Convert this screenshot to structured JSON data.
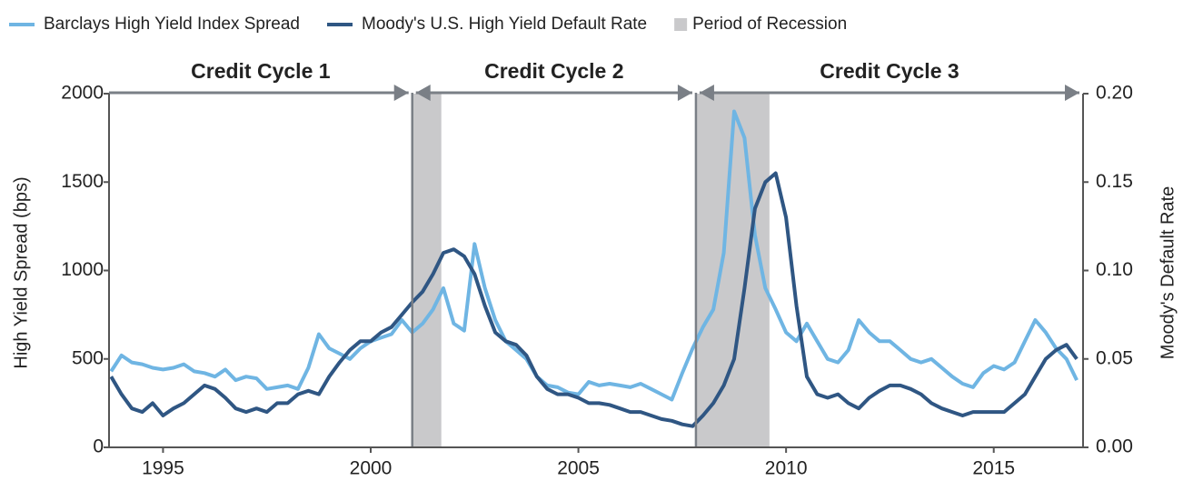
{
  "chart_data": {
    "type": "line",
    "y_label": "High Yield Spread (bps)",
    "y2_label": "Moody's Default Rate",
    "xlim": [
      1993.7,
      2017.15
    ],
    "xticks": [
      1995,
      2000,
      2005,
      2010,
      2015
    ],
    "ylim": [
      0,
      2000
    ],
    "yticks": [
      0,
      500,
      1000,
      1500,
      2000
    ],
    "y2lim": [
      0,
      0.2
    ],
    "y2ticks": [
      {
        "value": 0,
        "label": "0.00"
      },
      {
        "value": 0.05,
        "label": "0.05"
      },
      {
        "value": 0.1,
        "label": "0.10"
      },
      {
        "value": 0.15,
        "label": "0.15"
      },
      {
        "value": 0.2,
        "label": "0.20"
      }
    ],
    "recessions": {
      "name": "Period of Recession",
      "color": "#c9c9cb",
      "ranges": [
        [
          2001.0,
          2001.7
        ],
        [
          2007.83,
          2009.6
        ]
      ]
    },
    "cycles": [
      {
        "label": "Credit Cycle 1",
        "start": 1993.7,
        "end": 2001.0
      },
      {
        "label": "Credit Cycle 2",
        "start": 2001.0,
        "end": 2007.83
      },
      {
        "label": "Credit Cycle 3",
        "start": 2007.83,
        "end": 2017.15
      }
    ],
    "x": [
      1993.75,
      1994.0,
      1994.25,
      1994.5,
      1994.75,
      1995.0,
      1995.25,
      1995.5,
      1995.75,
      1996.0,
      1996.25,
      1996.5,
      1996.75,
      1997.0,
      1997.25,
      1997.5,
      1997.75,
      1998.0,
      1998.25,
      1998.5,
      1998.75,
      1999.0,
      1999.25,
      1999.5,
      1999.75,
      2000.0,
      2000.25,
      2000.5,
      2000.75,
      2001.0,
      2001.25,
      2001.5,
      2001.75,
      2002.0,
      2002.25,
      2002.5,
      2002.75,
      2003.0,
      2003.25,
      2003.5,
      2003.75,
      2004.0,
      2004.25,
      2004.5,
      2004.75,
      2005.0,
      2005.25,
      2005.5,
      2005.75,
      2006.0,
      2006.25,
      2006.5,
      2006.75,
      2007.0,
      2007.25,
      2007.5,
      2007.75,
      2008.0,
      2008.25,
      2008.5,
      2008.75,
      2009.0,
      2009.25,
      2009.5,
      2009.75,
      2010.0,
      2010.25,
      2010.5,
      2010.75,
      2011.0,
      2011.25,
      2011.5,
      2011.75,
      2012.0,
      2012.25,
      2012.5,
      2012.75,
      2013.0,
      2013.25,
      2013.5,
      2013.75,
      2014.0,
      2014.25,
      2014.5,
      2014.75,
      2015.0,
      2015.25,
      2015.5,
      2015.75,
      2016.0,
      2016.25,
      2016.5,
      2016.75,
      2017.0
    ],
    "series": [
      {
        "name": "Barclays High Yield Index Spread",
        "color": "#6fb5e3",
        "values": [
          430,
          520,
          480,
          470,
          450,
          440,
          450,
          470,
          430,
          420,
          400,
          440,
          380,
          400,
          390,
          330,
          340,
          350,
          330,
          450,
          640,
          560,
          530,
          500,
          560,
          600,
          620,
          640,
          720,
          650,
          700,
          780,
          900,
          700,
          660,
          1150,
          900,
          720,
          600,
          550,
          500,
          400,
          350,
          340,
          310,
          300,
          370,
          350,
          360,
          350,
          340,
          360,
          330,
          300,
          270,
          420,
          560,
          680,
          780,
          1100,
          1900,
          1750,
          1200,
          900,
          780,
          650,
          600,
          700,
          600,
          500,
          480,
          550,
          720,
          650,
          600,
          600,
          550,
          500,
          480,
          500,
          450,
          400,
          360,
          340,
          420,
          460,
          440,
          480,
          600,
          720,
          650,
          560,
          500,
          380
        ]
      },
      {
        "name": "Moody's U.S. High Yield Default Rate",
        "color": "#2f5683",
        "axis": "y2",
        "values": [
          0.04,
          0.03,
          0.022,
          0.02,
          0.025,
          0.018,
          0.022,
          0.025,
          0.03,
          0.035,
          0.033,
          0.028,
          0.022,
          0.02,
          0.022,
          0.02,
          0.025,
          0.025,
          0.03,
          0.032,
          0.03,
          0.04,
          0.048,
          0.055,
          0.06,
          0.06,
          0.065,
          0.068,
          0.075,
          0.082,
          0.088,
          0.098,
          0.11,
          0.112,
          0.108,
          0.098,
          0.08,
          0.065,
          0.06,
          0.058,
          0.052,
          0.04,
          0.033,
          0.03,
          0.03,
          0.028,
          0.025,
          0.025,
          0.024,
          0.022,
          0.02,
          0.02,
          0.018,
          0.016,
          0.015,
          0.013,
          0.012,
          0.018,
          0.025,
          0.035,
          0.05,
          0.09,
          0.135,
          0.15,
          0.155,
          0.13,
          0.08,
          0.04,
          0.03,
          0.028,
          0.03,
          0.025,
          0.022,
          0.028,
          0.032,
          0.035,
          0.035,
          0.033,
          0.03,
          0.025,
          0.022,
          0.02,
          0.018,
          0.02,
          0.02,
          0.02,
          0.02,
          0.025,
          0.03,
          0.04,
          0.05,
          0.055,
          0.058,
          0.05
        ]
      }
    ]
  }
}
